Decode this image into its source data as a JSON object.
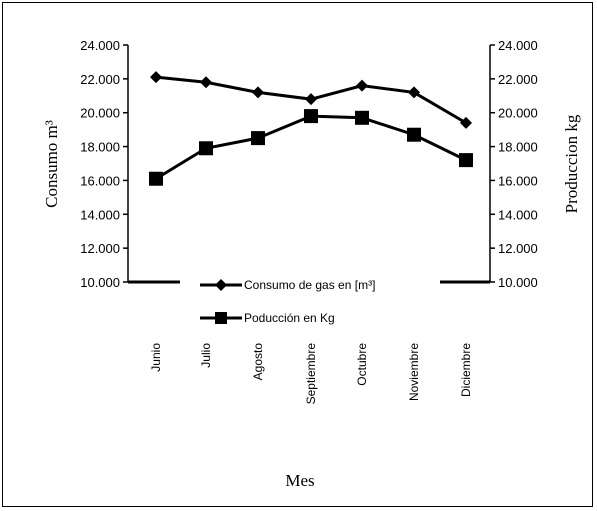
{
  "chart_data": {
    "type": "line",
    "xlabel": "Mes",
    "ylabel_left": "Consumo  m³",
    "ylabel_right": "Produccion kg",
    "categories": [
      "Junio",
      "Julio",
      "Agosto",
      "Septiembre",
      "Octubre",
      "Noviembre",
      "Diciembre"
    ],
    "ylim": [
      10000,
      24000
    ],
    "y2lim": [
      10000,
      24000
    ],
    "yticks": [
      "10.000",
      "12.000",
      "14.000",
      "16.000",
      "18.000",
      "20.000",
      "22.000",
      "24.000"
    ],
    "y2ticks": [
      "10.000",
      "12.000",
      "14.000",
      "16.000",
      "18.000",
      "20.000",
      "22.000",
      "24.000"
    ],
    "series": [
      {
        "name": "Consumo de gas en [m³]",
        "marker": "diamond",
        "axis": "left",
        "values": [
          22100,
          21800,
          21200,
          20800,
          21600,
          21200,
          19400
        ]
      },
      {
        "name": "Poducción en Kg",
        "marker": "square",
        "axis": "right",
        "values": [
          16100,
          17900,
          18500,
          19800,
          19700,
          18700,
          17200
        ]
      }
    ],
    "legend_position": "inside-bottom",
    "grid": false,
    "colors": {
      "line": "#000000",
      "background": "#ffffff"
    }
  }
}
